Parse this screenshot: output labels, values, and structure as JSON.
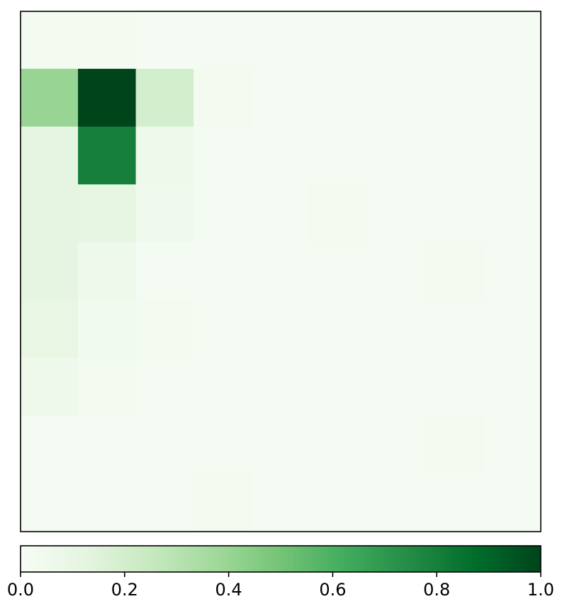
{
  "chart_data": {
    "type": "heatmap",
    "title": "",
    "xlabel": "",
    "ylabel": "",
    "rows": 9,
    "cols": 9,
    "vmin": 0.0,
    "vmax": 1.0,
    "cmap": "Greens",
    "grid": false,
    "values": [
      [
        0.03,
        0.03,
        0.02,
        0.02,
        0.02,
        0.02,
        0.02,
        0.02,
        0.02
      ],
      [
        0.4,
        1.0,
        0.2,
        0.03,
        0.02,
        0.02,
        0.02,
        0.02,
        0.02
      ],
      [
        0.12,
        0.8,
        0.06,
        0.02,
        0.02,
        0.02,
        0.02,
        0.02,
        0.02
      ],
      [
        0.12,
        0.11,
        0.05,
        0.02,
        0.02,
        0.03,
        0.02,
        0.02,
        0.02
      ],
      [
        0.12,
        0.06,
        0.02,
        0.02,
        0.02,
        0.02,
        0.02,
        0.03,
        0.02
      ],
      [
        0.1,
        0.04,
        0.03,
        0.02,
        0.02,
        0.02,
        0.02,
        0.02,
        0.02
      ],
      [
        0.06,
        0.03,
        0.02,
        0.02,
        0.02,
        0.02,
        0.02,
        0.02,
        0.02
      ],
      [
        0.02,
        0.02,
        0.02,
        0.02,
        0.02,
        0.02,
        0.02,
        0.03,
        0.02
      ],
      [
        0.02,
        0.02,
        0.02,
        0.03,
        0.02,
        0.02,
        0.02,
        0.02,
        0.02
      ]
    ],
    "colorbar": {
      "orientation": "horizontal",
      "range": [
        0.0,
        1.0
      ],
      "ticks": [
        0.0,
        0.2,
        0.4,
        0.6,
        0.8,
        1.0
      ],
      "tick_labels": [
        "0.0",
        "0.2",
        "0.4",
        "0.6",
        "0.8",
        "1.0"
      ]
    }
  }
}
